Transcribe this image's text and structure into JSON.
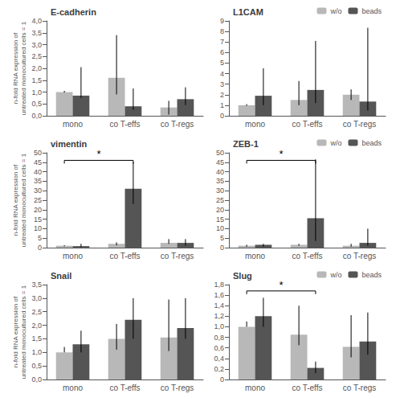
{
  "chart_data": [
    {
      "type": "bar",
      "title": "E-cadherin",
      "ylabel": "n-fold RNA expression of\nuntreated monocultured cells = 1",
      "categories": [
        "mono",
        "co T-effs",
        "co T-regs"
      ],
      "series": [
        {
          "name": "w/o",
          "color": "#b8b8b8",
          "values": [
            1.0,
            1.6,
            0.35
          ],
          "err_low": [
            0.02,
            0.7,
            0.3
          ],
          "err_high": [
            0.05,
            1.8,
            0.28
          ]
        },
        {
          "name": "beads",
          "color": "#555555",
          "values": [
            0.85,
            0.4,
            0.7
          ],
          "err_low": [
            0.1,
            0.15,
            0.25
          ],
          "err_high": [
            1.2,
            0.75,
            0.5
          ]
        }
      ],
      "ylim": [
        0,
        4.0
      ],
      "yticks": [
        {
          "value": 0.0,
          "label": "0,0"
        },
        {
          "value": 0.5,
          "label": "0,5"
        },
        {
          "value": 1.0,
          "label": "1,0"
        },
        {
          "value": 1.5,
          "label": "1,5"
        },
        {
          "value": 2.0,
          "label": "2,0"
        },
        {
          "value": 2.5,
          "label": "2,5"
        },
        {
          "value": 3.0,
          "label": "3,0"
        },
        {
          "value": 3.5,
          "label": "3,5"
        },
        {
          "value": 4.0,
          "label": "4,0"
        }
      ],
      "grid": false
    },
    {
      "type": "bar",
      "title": "L1CAM",
      "categories": [
        "mono",
        "co T-effs",
        "co T-regs"
      ],
      "series": [
        {
          "name": "w/o",
          "color": "#b8b8b8",
          "values": [
            1.0,
            1.5,
            2.0
          ],
          "err_low": [
            0.05,
            0.5,
            0.5
          ],
          "err_high": [
            0.1,
            1.8,
            0.5
          ]
        },
        {
          "name": "beads",
          "color": "#555555",
          "values": [
            1.9,
            2.45,
            1.35
          ],
          "err_low": [
            0.9,
            1.25,
            0.85
          ],
          "err_high": [
            2.6,
            4.65,
            7.0
          ]
        }
      ],
      "ylim": [
        0,
        9
      ],
      "yticks": [
        0,
        1,
        2,
        3,
        4,
        5,
        6,
        7,
        8,
        9
      ],
      "grid": false,
      "legend": "upper right"
    },
    {
      "type": "bar",
      "title": "vimentin",
      "ylabel": "n-fold RNA expression of\nuntreated monocultured cells = 1",
      "categories": [
        "mono",
        "co T-effs",
        "co T-regs"
      ],
      "series": [
        {
          "name": "w/o",
          "color": "#b8b8b8",
          "values": [
            1.0,
            2.0,
            2.5
          ],
          "err_low": [
            0.3,
            0.8,
            0.5
          ],
          "err_high": [
            0.3,
            0.8,
            2.0
          ]
        },
        {
          "name": "beads",
          "color": "#555555",
          "values": [
            0.8,
            31.0,
            2.5
          ],
          "err_low": [
            0.5,
            8.0,
            1.5
          ],
          "err_high": [
            1.2,
            14.0,
            2.0
          ]
        }
      ],
      "ylim": [
        0,
        50
      ],
      "yticks": [
        0,
        5,
        10,
        15,
        20,
        25,
        30,
        35,
        40,
        45,
        50
      ],
      "annotations": [
        {
          "text": "*",
          "x1": "mono",
          "x2": "co T-effs",
          "y": 46
        }
      ],
      "grid": false
    },
    {
      "type": "bar",
      "title": "ZEB-1",
      "categories": [
        "mono",
        "co T-effs",
        "co T-regs"
      ],
      "series": [
        {
          "name": "w/o",
          "color": "#b8b8b8",
          "values": [
            1.0,
            1.5,
            1.0
          ],
          "err_low": [
            0.5,
            0.5,
            0.5
          ],
          "err_high": [
            0.5,
            0.5,
            1.0
          ]
        },
        {
          "name": "beads",
          "color": "#555555",
          "values": [
            1.5,
            15.5,
            2.5
          ],
          "err_low": [
            1.0,
            12.0,
            1.5
          ],
          "err_high": [
            0.5,
            31.0,
            7.5
          ]
        }
      ],
      "ylim": [
        0,
        50
      ],
      "yticks": [
        0,
        5,
        10,
        15,
        20,
        25,
        30,
        35,
        40,
        45,
        50
      ],
      "annotations": [
        {
          "text": "*",
          "x1": "mono",
          "x2": "co T-effs",
          "y": 46
        }
      ],
      "grid": false,
      "legend": "upper right"
    },
    {
      "type": "bar",
      "title": "Snail",
      "ylabel": "n-fold RNA expression of\nuntreated monocultured cells = 1",
      "categories": [
        "mono",
        "co T-effs",
        "co T-regs"
      ],
      "series": [
        {
          "name": "w/o",
          "color": "#b8b8b8",
          "values": [
            1.0,
            1.5,
            1.55
          ],
          "err_low": [
            0.0,
            0.4,
            0.5
          ],
          "err_high": [
            0.2,
            0.55,
            1.4
          ]
        },
        {
          "name": "beads",
          "color": "#555555",
          "values": [
            1.3,
            2.2,
            1.9
          ],
          "err_low": [
            0.3,
            0.7,
            0.4
          ],
          "err_high": [
            0.5,
            0.8,
            1.1
          ]
        }
      ],
      "ylim": [
        0,
        3.5
      ],
      "yticks": [
        {
          "value": 0.0,
          "label": "0,0"
        },
        {
          "value": 0.5,
          "label": "0,5"
        },
        {
          "value": 1.0,
          "label": "1,0"
        },
        {
          "value": 1.5,
          "label": "1,5"
        },
        {
          "value": 2.0,
          "label": "2,0"
        },
        {
          "value": 2.5,
          "label": "2,5"
        },
        {
          "value": 3.0,
          "label": "3,0"
        },
        {
          "value": 3.5,
          "label": "3,5"
        }
      ],
      "grid": false
    },
    {
      "type": "bar",
      "title": "Slug",
      "categories": [
        "mono",
        "co T-effs",
        "co T-regs"
      ],
      "series": [
        {
          "name": "w/o",
          "color": "#b8b8b8",
          "values": [
            1.0,
            0.85,
            0.62
          ],
          "err_low": [
            0.0,
            0.2,
            0.2
          ],
          "err_high": [
            0.1,
            0.55,
            0.6
          ]
        },
        {
          "name": "beads",
          "color": "#555555",
          "values": [
            1.2,
            0.22,
            0.72
          ],
          "err_low": [
            0.2,
            0.1,
            0.25
          ],
          "err_high": [
            0.35,
            0.12,
            0.55
          ]
        }
      ],
      "ylim": [
        0,
        1.8
      ],
      "yticks": [
        0,
        {
          "value": 0.2,
          "label": "0,2"
        },
        {
          "value": 0.4,
          "label": "0,4"
        },
        {
          "value": 0.6,
          "label": "0,6"
        },
        {
          "value": 0.8,
          "label": "0,8"
        },
        {
          "value": 1.0,
          "label": "1,0"
        },
        {
          "value": 1.2,
          "label": "1,2"
        },
        {
          "value": 1.4,
          "label": "1,4"
        },
        {
          "value": 1.6,
          "label": "1,6"
        },
        {
          "value": 1.8,
          "label": "1,8"
        }
      ],
      "annotations": [
        {
          "text": "*",
          "x1": "mono",
          "x2": "co T-effs",
          "y": 1.68
        }
      ],
      "grid": false,
      "legend": "upper right"
    }
  ]
}
